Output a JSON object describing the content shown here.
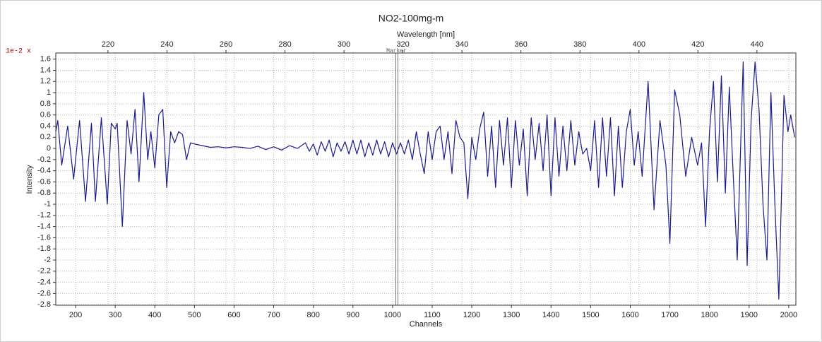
{
  "chart_data": {
    "type": "line",
    "title": "NO2-100mg-m",
    "xlabel": "Channels",
    "x2label": "Wavelength [nm]",
    "ylabel": "Intensity",
    "y_scale_label": "1e-2 x",
    "marker": {
      "x": 1010,
      "label": "Marker"
    },
    "grid": true,
    "xlim": [
      150,
      2018
    ],
    "xticks": [
      200,
      300,
      400,
      500,
      600,
      700,
      800,
      900,
      1000,
      1100,
      1200,
      1300,
      1400,
      1500,
      1600,
      1700,
      1800,
      1900,
      2000
    ],
    "x2lim": [
      202.3,
      453.2
    ],
    "x2ticks": [
      220,
      240,
      260,
      280,
      300,
      320,
      340,
      360,
      380,
      400,
      420,
      440
    ],
    "ylim": [
      -2.81,
      1.71
    ],
    "yticks": [
      -2.8,
      -2.6,
      -2.4,
      -2.2,
      -2,
      -1.8,
      -1.6,
      -1.4,
      -1.2,
      -1,
      -0.8,
      -0.6,
      -0.4,
      -0.2,
      0,
      0.2,
      0.4,
      0.6,
      0.8,
      1,
      1.2,
      1.4,
      1.6
    ],
    "x": [
      150,
      155,
      165,
      180,
      195,
      210,
      225,
      240,
      250,
      265,
      280,
      290,
      300,
      305,
      318,
      330,
      340,
      350,
      360,
      372,
      382,
      390,
      400,
      410,
      420,
      430,
      440,
      450,
      460,
      470,
      480,
      490,
      500,
      520,
      540,
      560,
      580,
      600,
      620,
      640,
      660,
      680,
      700,
      720,
      740,
      760,
      780,
      790,
      800,
      810,
      820,
      830,
      840,
      850,
      860,
      870,
      880,
      890,
      900,
      910,
      920,
      930,
      940,
      950,
      960,
      970,
      980,
      990,
      1000,
      1010,
      1020,
      1030,
      1040,
      1050,
      1060,
      1070,
      1080,
      1090,
      1100,
      1110,
      1120,
      1130,
      1140,
      1150,
      1160,
      1170,
      1180,
      1190,
      1200,
      1210,
      1220,
      1230,
      1240,
      1250,
      1260,
      1270,
      1280,
      1290,
      1300,
      1310,
      1320,
      1330,
      1340,
      1350,
      1360,
      1370,
      1380,
      1390,
      1400,
      1410,
      1420,
      1430,
      1440,
      1450,
      1460,
      1470,
      1480,
      1490,
      1500,
      1510,
      1520,
      1530,
      1540,
      1550,
      1560,
      1570,
      1580,
      1590,
      1600,
      1610,
      1620,
      1630,
      1645,
      1660,
      1675,
      1690,
      1700,
      1712,
      1725,
      1740,
      1755,
      1770,
      1780,
      1790,
      1800,
      1810,
      1820,
      1830,
      1840,
      1850,
      1860,
      1870,
      1885,
      1895,
      1905,
      1915,
      1925,
      1935,
      1945,
      1955,
      1965,
      1975,
      1988,
      1998,
      2005,
      2015
    ],
    "series": [
      {
        "color": "#1a1a8c",
        "values": [
          0.3,
          0.5,
          -0.3,
          0.4,
          -0.55,
          0.5,
          -0.95,
          0.45,
          -0.95,
          0.55,
          -1.0,
          0.45,
          0.35,
          0.45,
          -1.4,
          0.5,
          -0.1,
          0.7,
          -0.6,
          1.0,
          -0.2,
          0.3,
          -0.35,
          0.6,
          0.7,
          -0.7,
          0.3,
          0.1,
          0.3,
          0.25,
          -0.2,
          0.1,
          0.08,
          0.05,
          0.02,
          0.03,
          0.01,
          0.03,
          0.02,
          0.0,
          0.04,
          -0.02,
          0.03,
          -0.03,
          0.05,
          0.0,
          0.1,
          -0.05,
          0.08,
          -0.12,
          0.12,
          -0.05,
          0.15,
          -0.15,
          0.1,
          -0.05,
          0.12,
          -0.1,
          0.15,
          -0.1,
          0.15,
          -0.15,
          0.1,
          -0.12,
          0.15,
          -0.1,
          0.12,
          -0.15,
          0.1,
          -0.1,
          0.1,
          -0.1,
          0.15,
          -0.2,
          0.3,
          -0.1,
          -0.45,
          0.3,
          -0.2,
          0.3,
          0.4,
          -0.2,
          0.3,
          -0.45,
          0.5,
          0.2,
          0.1,
          -0.9,
          0.2,
          -0.2,
          0.35,
          0.65,
          -0.5,
          0.4,
          -0.7,
          0.5,
          -0.3,
          0.55,
          -0.7,
          0.5,
          -0.3,
          0.35,
          -0.85,
          0.55,
          -0.2,
          0.45,
          -0.4,
          0.6,
          -0.85,
          0.55,
          -0.5,
          0.4,
          -0.4,
          0.5,
          -0.3,
          0.3,
          -0.1,
          0.0,
          -0.4,
          0.5,
          -0.7,
          0.55,
          -0.5,
          0.55,
          -0.85,
          0.4,
          -0.7,
          0.3,
          0.7,
          -0.3,
          0.3,
          -0.5,
          1.2,
          -1.1,
          0.5,
          -0.3,
          -1.7,
          1.05,
          0.6,
          -0.5,
          0.2,
          -0.3,
          0.1,
          -1.4,
          0.3,
          1.2,
          -0.6,
          1.3,
          -0.8,
          1.1,
          -0.5,
          -2.0,
          1.55,
          -2.1,
          0.5,
          1.55,
          0.7,
          -1.0,
          -2.0,
          1.0,
          -1.0,
          -2.7,
          0.95,
          0.3,
          0.6,
          0.2
        ]
      }
    ]
  }
}
